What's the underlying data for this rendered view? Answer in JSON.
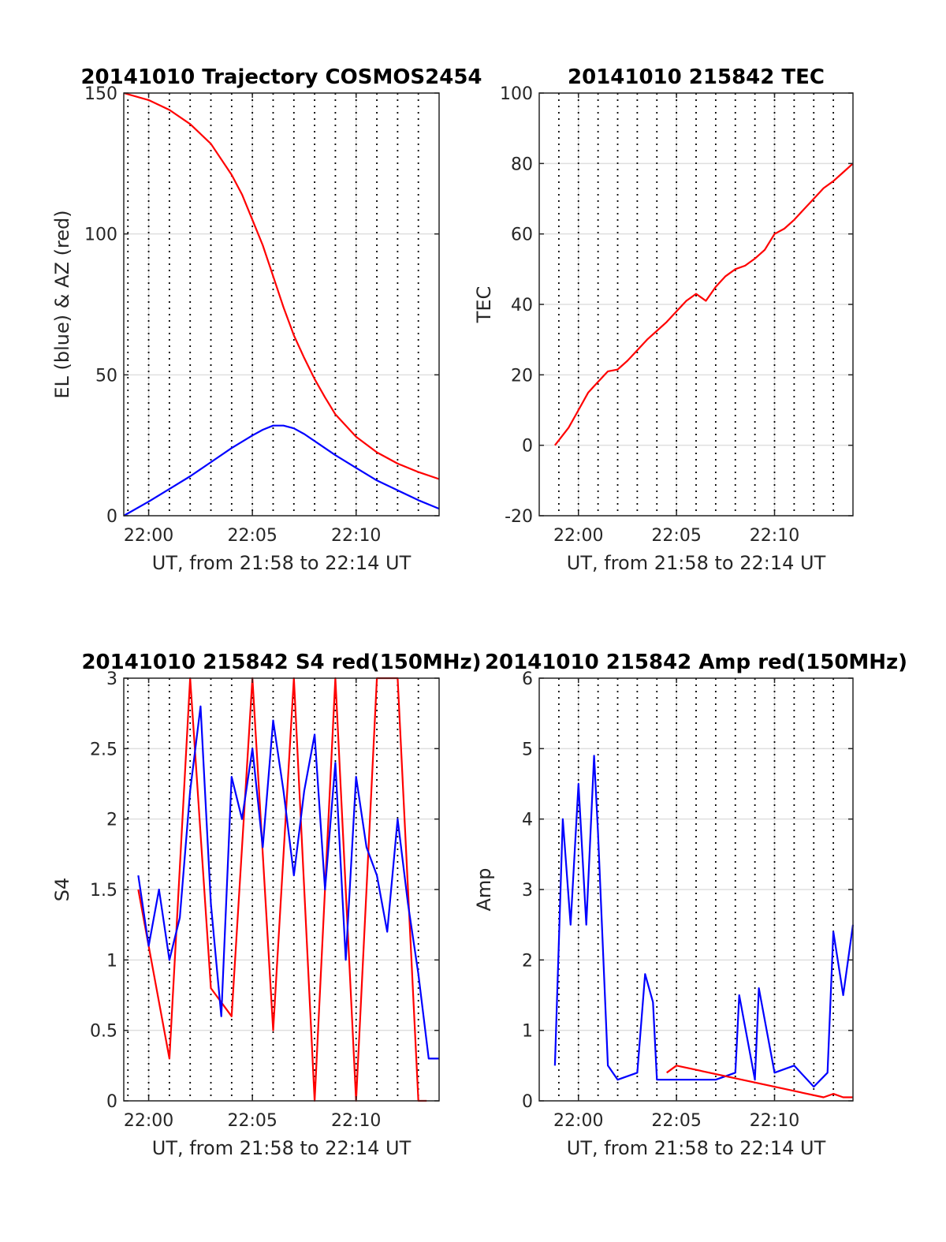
{
  "chart_data": [
    {
      "type": "line",
      "title": "20141010 Trajectory COSMOS2454",
      "xlabel": "UT, from 21:58 to 22:14 UT",
      "ylabel": "EL (blue) & AZ (red)",
      "xlim": [
        -1.2,
        14.0
      ],
      "ylim": [
        0,
        150
      ],
      "xticks": [
        0,
        5,
        10
      ],
      "xtick_labels": [
        "22:00",
        "22:05",
        "22:10"
      ],
      "yticks": [
        0,
        50,
        100,
        150
      ],
      "ytick_labels": [
        "0",
        "50",
        "100",
        "150"
      ],
      "grid": true,
      "series": [
        {
          "color": "#0000ff",
          "x": [
            -1.2,
            0,
            1,
            2,
            3,
            4,
            5,
            5.5,
            6,
            6.5,
            7,
            7.5,
            8,
            9,
            10,
            11,
            12,
            13,
            14
          ],
          "y": [
            0,
            5,
            9.5,
            14,
            19,
            24,
            28.5,
            30.5,
            32,
            32,
            31,
            29,
            26.5,
            21.5,
            17,
            12.5,
            9,
            5.5,
            2.5
          ]
        },
        {
          "color": "#ff0000",
          "x": [
            -1.2,
            0,
            1,
            2,
            3,
            4,
            4.5,
            5,
            5.5,
            6,
            6.5,
            7,
            7.5,
            8,
            8.5,
            9,
            10,
            11,
            12,
            13,
            14
          ],
          "y": [
            150,
            147.5,
            144,
            139,
            132,
            121,
            114,
            105,
            96,
            85,
            74,
            64,
            56,
            48.5,
            42,
            36,
            28,
            22.5,
            18.5,
            15.5,
            13
          ]
        }
      ]
    },
    {
      "type": "line",
      "title": "20141010 215842 TEC",
      "xlabel": "UT, from 21:58 to 22:14 UT",
      "ylabel": "TEC",
      "xlim": [
        -2,
        14.0
      ],
      "ylim": [
        -20,
        100
      ],
      "xticks": [
        0,
        5,
        10
      ],
      "xtick_labels": [
        "22:00",
        "22:05",
        "22:10"
      ],
      "yticks": [
        -20,
        0,
        20,
        40,
        60,
        80,
        100
      ],
      "ytick_labels": [
        "-20",
        "0",
        "20",
        "40",
        "60",
        "80",
        "100"
      ],
      "grid": true,
      "series": [
        {
          "color": "#ff0000",
          "x": [
            -1.2,
            -0.5,
            0,
            0.5,
            1,
            1.5,
            2,
            2.5,
            3,
            3.5,
            4,
            4.5,
            5,
            5.5,
            6,
            6.5,
            7,
            7.5,
            8,
            8.5,
            9,
            9.5,
            10,
            10.5,
            11,
            11.5,
            12,
            12.5,
            13,
            13.5,
            14
          ],
          "y": [
            0,
            5,
            10,
            15,
            18,
            21,
            21.5,
            24,
            27,
            30,
            32.5,
            35,
            38,
            41,
            43,
            41,
            45,
            48,
            50,
            51,
            53,
            55.5,
            60,
            61.5,
            64,
            67,
            70,
            73,
            75,
            77.5,
            80
          ]
        }
      ]
    },
    {
      "type": "line",
      "title": "20141010 215842 S4 red(150MHz)",
      "xlabel": "UT, from 21:58 to 22:14 UT",
      "ylabel": "S4",
      "xlim": [
        -1.2,
        14.0
      ],
      "ylim": [
        0,
        3
      ],
      "xticks": [
        0,
        5,
        10
      ],
      "xtick_labels": [
        "22:00",
        "22:05",
        "22:10"
      ],
      "yticks": [
        0,
        0.5,
        1,
        1.5,
        2,
        2.5,
        3
      ],
      "ytick_labels": [
        "0",
        "0.5",
        "1",
        "1.5",
        "2",
        "2.5",
        "3"
      ],
      "grid": true,
      "series": [
        {
          "color": "#ff0000",
          "x": [
            -0.5,
            1,
            2,
            3,
            4,
            5,
            6,
            7,
            8,
            9,
            10,
            11,
            12,
            13,
            13.4
          ],
          "y": [
            1.5,
            0.3,
            3,
            0.8,
            0.6,
            3,
            0.5,
            3,
            0,
            3,
            0,
            3,
            3,
            0,
            0
          ]
        },
        {
          "color": "#0000ff",
          "x": [
            -0.5,
            0,
            0.5,
            1,
            1.5,
            2,
            2.5,
            3,
            3.5,
            4,
            4.5,
            5,
            5.5,
            6,
            6.5,
            7,
            7.5,
            8,
            8.5,
            9,
            9.5,
            10,
            10.5,
            11,
            11.5,
            12,
            12.5,
            13,
            13.5,
            14
          ],
          "y": [
            1.6,
            1.1,
            1.5,
            1.0,
            1.3,
            2.2,
            2.8,
            1.4,
            0.6,
            2.3,
            2.0,
            2.5,
            1.8,
            2.7,
            2.2,
            1.6,
            2.2,
            2.6,
            1.5,
            2.4,
            1.0,
            2.3,
            1.8,
            1.6,
            1.2,
            2.0,
            1.4,
            0.9,
            0.3,
            0.3
          ]
        }
      ]
    },
    {
      "type": "line",
      "title": "20141010 215842 Amp red(150MHz)",
      "xlabel": "UT, from 21:58 to 22:14 UT",
      "ylabel": "Amp",
      "xlim": [
        -2,
        14.0
      ],
      "ylim": [
        0,
        6
      ],
      "xticks": [
        0,
        5,
        10
      ],
      "xtick_labels": [
        "22:00",
        "22:05",
        "22:10"
      ],
      "yticks": [
        0,
        1,
        2,
        3,
        4,
        5,
        6
      ],
      "ytick_labels": [
        "0",
        "1",
        "2",
        "3",
        "4",
        "5",
        "6"
      ],
      "grid": true,
      "series": [
        {
          "color": "#0000ff",
          "x": [
            -1.2,
            -0.8,
            -0.4,
            0,
            0.4,
            0.8,
            1.0,
            1.5,
            2,
            3,
            3.4,
            3.8,
            4,
            5,
            6,
            7,
            8,
            8.2,
            9,
            9.2,
            10,
            11,
            12,
            12.7,
            13,
            13.5,
            14
          ],
          "y": [
            0.5,
            4.0,
            2.5,
            4.5,
            2.5,
            4.9,
            3.8,
            0.5,
            0.3,
            0.4,
            1.8,
            1.4,
            0.3,
            0.3,
            0.3,
            0.3,
            0.4,
            1.5,
            0.3,
            1.6,
            0.4,
            0.5,
            0.2,
            0.4,
            2.4,
            1.5,
            2.5
          ]
        },
        {
          "color": "#ff0000",
          "x": [
            4.5,
            5,
            12.5,
            13,
            13.5,
            14
          ],
          "y": [
            0.4,
            0.5,
            0.05,
            0.1,
            0.05,
            0.05
          ]
        }
      ]
    }
  ]
}
